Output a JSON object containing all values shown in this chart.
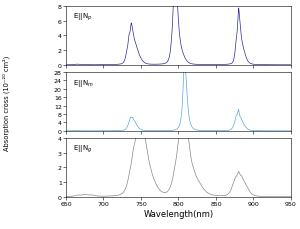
{
  "title": "",
  "xlabel": "Wavelength(nm)",
  "ylabel": "Absorption cross (10⁻²⁰ cm²)",
  "xlim": [
    650,
    950
  ],
  "panels": [
    {
      "label": "E||N$_p$",
      "color": "#2a2a9a",
      "ylim": [
        0,
        8
      ],
      "yticks": [
        0,
        2,
        4,
        6,
        8
      ]
    },
    {
      "label": "E||N$_m$",
      "color": "#55aadd",
      "ylim": [
        0,
        28
      ],
      "yticks": [
        0,
        4,
        8,
        12,
        16,
        20,
        24,
        28
      ]
    },
    {
      "label": "E||N$_g$",
      "color": "#888888",
      "ylim": [
        0,
        4
      ],
      "yticks": [
        0,
        1,
        2,
        3,
        4
      ]
    }
  ],
  "xticks": [
    650,
    700,
    750,
    800,
    850,
    900,
    950
  ],
  "background_color": "#ffffff"
}
